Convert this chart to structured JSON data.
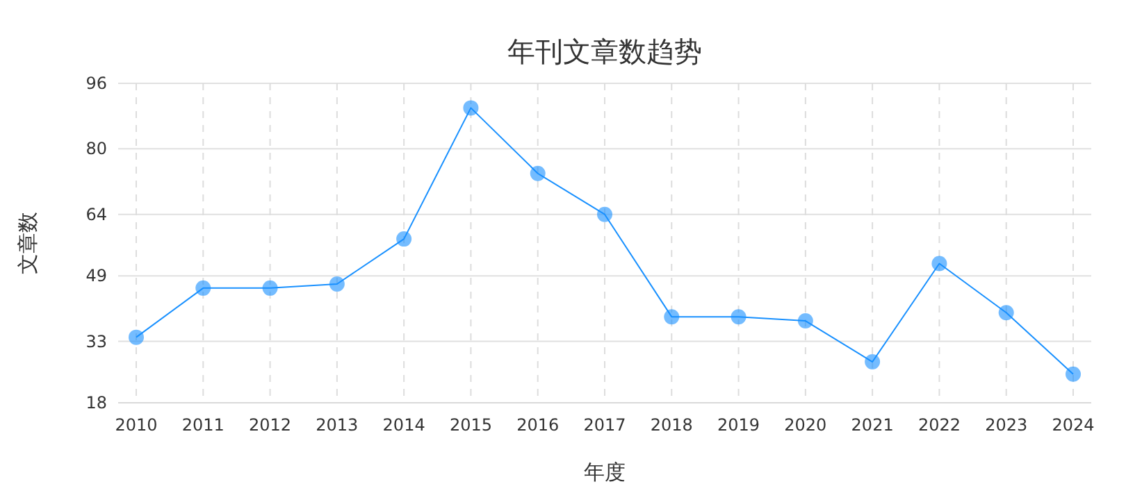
{
  "chart_data": {
    "type": "line",
    "title": "年刊文章数趋势",
    "xlabel": "年度",
    "ylabel": "文章数",
    "categories": [
      "2010",
      "2011",
      "2012",
      "2013",
      "2014",
      "2015",
      "2016",
      "2017",
      "2018",
      "2019",
      "2020",
      "2021",
      "2022",
      "2023",
      "2024"
    ],
    "series": [
      {
        "color": "#1890ff",
        "values": [
          34,
          46,
          46,
          47,
          58,
          90,
          74,
          64,
          39,
          39,
          38,
          28,
          52,
          40,
          25
        ]
      }
    ],
    "ylim": [
      18,
      96
    ],
    "yticks": [
      18,
      33,
      49,
      64,
      80,
      96
    ],
    "grid": true,
    "marker": "circle",
    "line_style": "solid"
  }
}
